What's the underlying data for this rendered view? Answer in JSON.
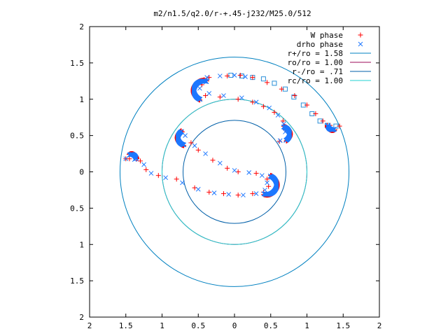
{
  "chart_data": {
    "type": "scatter",
    "title": "m2/n1.5/q2.0/r-+.45-j232/M25.0/512",
    "xlim": [
      -2,
      2
    ],
    "ylim": [
      -2,
      2
    ],
    "x_ticks": [
      -2,
      -1.5,
      -1,
      -0.5,
      0,
      0.5,
      1,
      1.5,
      2
    ],
    "y_ticks": [
      -2,
      -1.5,
      -1,
      -0.5,
      0,
      0.5,
      1,
      1.5,
      2
    ],
    "x_tick_labels": [
      "2",
      "1.5",
      "1",
      "0.5",
      "0",
      "0.5",
      "1",
      "1.5",
      "2"
    ],
    "y_tick_labels": [
      "2",
      "1.5",
      "1",
      "0.5",
      "0",
      "0.5",
      "1",
      "1.5",
      "2"
    ],
    "grid": false,
    "legend_position": "top-right",
    "series": [
      {
        "name": "W phase",
        "marker": "plus",
        "color": "#ff0000",
        "points": [
          [
            -0.45,
            1.2
          ],
          [
            -0.42,
            1.27
          ],
          [
            -0.35,
            1.3
          ],
          [
            -0.1,
            1.32
          ],
          [
            0.08,
            1.33
          ],
          [
            0.25,
            1.3
          ],
          [
            0.45,
            1.23
          ],
          [
            0.65,
            1.14
          ],
          [
            0.83,
            1.05
          ],
          [
            1.0,
            0.92
          ],
          [
            1.12,
            0.8
          ],
          [
            1.22,
            0.7
          ],
          [
            1.32,
            0.64
          ],
          [
            1.45,
            0.63
          ],
          [
            -0.4,
            1.05
          ],
          [
            -0.2,
            1.03
          ],
          [
            0.05,
            1.0
          ],
          [
            0.25,
            0.96
          ],
          [
            0.4,
            0.9
          ],
          [
            0.55,
            0.82
          ],
          [
            0.67,
            0.7
          ],
          [
            0.7,
            0.58
          ],
          [
            0.62,
            0.42
          ],
          [
            -0.72,
            0.55
          ],
          [
            -0.6,
            0.4
          ],
          [
            -0.5,
            0.3
          ],
          [
            -0.3,
            0.16
          ],
          [
            -0.1,
            0.05
          ],
          [
            0.05,
            0.0
          ],
          [
            0.3,
            -0.02
          ],
          [
            0.45,
            -0.1
          ],
          [
            0.47,
            -0.2
          ],
          [
            0.4,
            -0.28
          ],
          [
            0.25,
            -0.3
          ],
          [
            0.05,
            -0.32
          ],
          [
            -0.15,
            -0.3
          ],
          [
            -0.35,
            -0.28
          ],
          [
            -0.55,
            -0.22
          ],
          [
            -0.8,
            -0.1
          ],
          [
            -1.05,
            -0.05
          ],
          [
            -1.22,
            0.03
          ],
          [
            -1.3,
            0.15
          ],
          [
            -1.45,
            0.18
          ],
          [
            -1.5,
            0.18
          ]
        ]
      },
      {
        "name": "drho phase",
        "marker": "x",
        "color": "#1e78ff",
        "points": [
          [
            -0.48,
            1.15
          ],
          [
            -0.45,
            1.25
          ],
          [
            -0.38,
            1.3
          ],
          [
            -0.2,
            1.32
          ],
          [
            0.0,
            1.33
          ],
          [
            0.15,
            1.31
          ],
          [
            -0.35,
            1.08
          ],
          [
            -0.15,
            1.05
          ],
          [
            0.1,
            1.02
          ],
          [
            0.3,
            0.96
          ],
          [
            0.48,
            0.88
          ],
          [
            0.6,
            0.78
          ],
          [
            0.68,
            0.66
          ],
          [
            0.7,
            0.55
          ],
          [
            0.63,
            0.43
          ],
          [
            -0.68,
            0.5
          ],
          [
            -0.55,
            0.36
          ],
          [
            -0.4,
            0.25
          ],
          [
            -0.2,
            0.12
          ],
          [
            0.0,
            0.02
          ],
          [
            0.2,
            -0.01
          ],
          [
            0.38,
            -0.05
          ],
          [
            0.45,
            -0.15
          ],
          [
            0.42,
            -0.25
          ],
          [
            0.3,
            -0.3
          ],
          [
            0.12,
            -0.32
          ],
          [
            -0.08,
            -0.31
          ],
          [
            -0.28,
            -0.29
          ],
          [
            -0.5,
            -0.24
          ],
          [
            -0.72,
            -0.15
          ],
          [
            -0.95,
            -0.08
          ],
          [
            -1.15,
            -0.02
          ],
          [
            -1.25,
            0.1
          ],
          [
            -1.38,
            0.17
          ],
          [
            -1.5,
            0.18
          ]
        ]
      }
    ],
    "circles": [
      {
        "name": "r+/ro = 1.58",
        "radius": 1.58,
        "color": "#0080c0"
      },
      {
        "name": "ro/ro = 1.00",
        "radius": 1.0,
        "color": "#9b0a5a"
      },
      {
        "name": "r-/ro = .71",
        "radius": 0.71,
        "color": "#005fa8"
      },
      {
        "name": "rc/ro = 1.00",
        "radius": 1.0,
        "color": "#20d0d0"
      }
    ],
    "squares": {
      "color": "#2a8fd8",
      "points": [
        [
          -0.05,
          1.33
        ],
        [
          0.1,
          1.32
        ],
        [
          0.25,
          1.3
        ],
        [
          0.4,
          1.28
        ],
        [
          0.55,
          1.22
        ],
        [
          0.7,
          1.14
        ],
        [
          0.82,
          1.03
        ],
        [
          0.95,
          0.92
        ],
        [
          1.07,
          0.8
        ],
        [
          1.18,
          0.7
        ],
        [
          1.28,
          0.64
        ],
        [
          1.4,
          0.63
        ]
      ]
    }
  }
}
